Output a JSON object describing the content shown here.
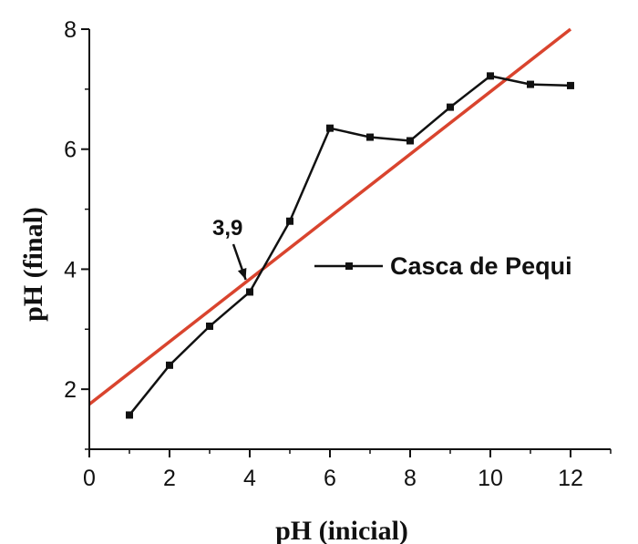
{
  "chart_data": {
    "type": "line",
    "title": "",
    "xlabel": "pH (inicial)",
    "ylabel": "pH (final)",
    "xlim": [
      0,
      13
    ],
    "ylim": [
      1,
      8
    ],
    "x_ticks": [
      0,
      2,
      4,
      6,
      8,
      10,
      12
    ],
    "y_ticks": [
      2,
      4,
      6,
      8
    ],
    "grid": false,
    "legend_position": "right",
    "series": [
      {
        "name": "Casca de Pequi",
        "color": "#111111",
        "marker": "square",
        "x": [
          1,
          2,
          3,
          4,
          5,
          6,
          7,
          8,
          9,
          10,
          11,
          12
        ],
        "y": [
          1.57,
          2.4,
          3.05,
          3.62,
          4.8,
          6.35,
          6.2,
          6.14,
          6.7,
          7.22,
          7.08,
          7.06
        ]
      }
    ],
    "reference_line": {
      "color": "#d9442e",
      "x": [
        0,
        12
      ],
      "y": [
        1.75,
        8.0
      ]
    },
    "annotations": [
      {
        "text": "3,9",
        "arrow_to": [
          3.9,
          3.78
        ]
      }
    ]
  }
}
